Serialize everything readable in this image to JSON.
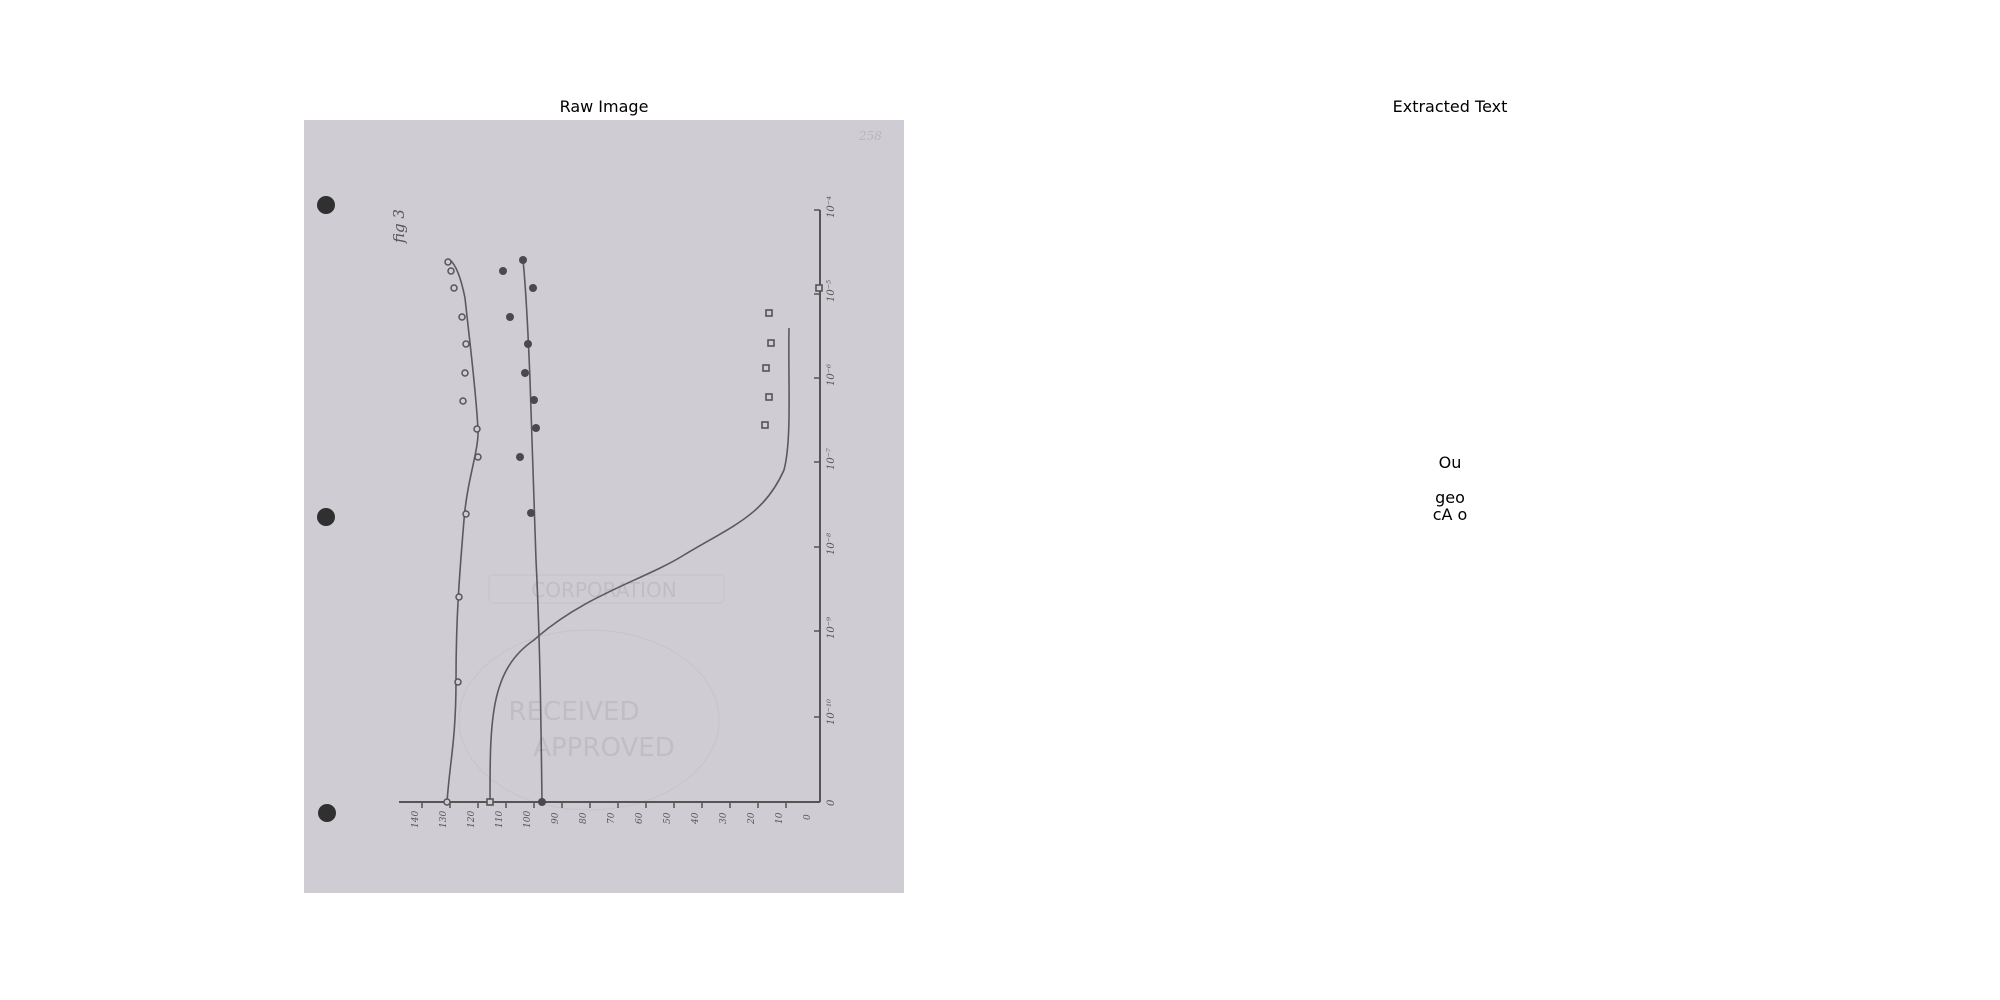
{
  "panels": {
    "left_title": "Raw Image",
    "right_title": "Extracted Text"
  },
  "scan": {
    "figure_label": "fig 3",
    "page_number": "258",
    "y_tick_labels": [
      "0",
      "10⁻¹⁰",
      "10⁻⁹",
      "10⁻⁸",
      "10⁻⁷",
      "10⁻⁶",
      "10⁻⁵",
      "10⁻⁴"
    ],
    "x_tick_labels": [
      "140",
      "130",
      "120",
      "110",
      "100",
      "90",
      "80",
      "70",
      "60",
      "50",
      "40",
      "30",
      "20",
      "10",
      "0"
    ],
    "stamp_text": [
      "CORPORATION",
      "RECEIVED",
      "APPROVED"
    ]
  },
  "extracted": {
    "line1": "Ou",
    "line2": "geo",
    "line3": "cA o"
  }
}
